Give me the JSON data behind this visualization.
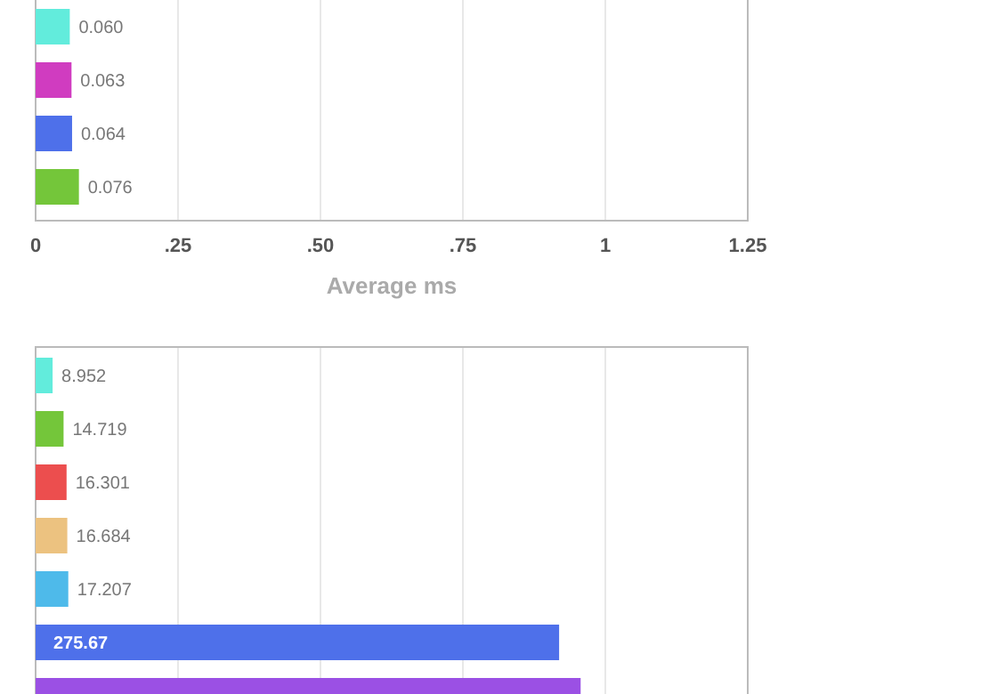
{
  "chart_data": [
    {
      "type": "bar",
      "orientation": "horizontal",
      "categories": [
        null,
        null,
        null,
        null
      ],
      "xlabel": "Average ms",
      "values": [
        0.06,
        0.063,
        0.064,
        0.076
      ],
      "colors": [
        "#62ecdc",
        "#d03cc0",
        "#4e70ea",
        "#74c63a"
      ],
      "value_labels": [
        "0.060",
        "0.063",
        "0.064",
        "0.076"
      ],
      "xlim": [
        0,
        1.25
      ],
      "xticks": [
        0,
        {
          "value": 0.25,
          "label": ".25"
        },
        {
          "value": 0.5,
          "label": ".50"
        },
        {
          "value": 0.75,
          "label": ".75"
        },
        1,
        1.25
      ],
      "grid": "x",
      "tick_labels": "x"
    },
    {
      "type": "bar",
      "orientation": "horizontal",
      "categories": [
        null,
        null,
        null,
        null,
        null,
        null,
        null
      ],
      "values": [
        8.952,
        14.719,
        16.301,
        16.684,
        17.207,
        275.67,
        287
      ],
      "colors": [
        "#62ecdc",
        "#74c63a",
        "#ec4e4e",
        "#ecc280",
        "#4ebaea",
        "#4e70ea",
        "#9b50e4"
      ],
      "value_labels": [
        "8.952",
        "14.719",
        "16.301",
        "16.684",
        "17.207",
        "275.67",
        null
      ],
      "xlim": [
        0,
        375
      ],
      "xticks": [
        {
          "value": 0,
          "label": null
        },
        {
          "value": 75,
          "label": null
        },
        {
          "value": 150,
          "label": null
        },
        {
          "value": 225,
          "label": null
        },
        {
          "value": 300,
          "label": null
        },
        {
          "value": 375,
          "label": null
        }
      ],
      "grid": "x",
      "tick_labels": false
    }
  ]
}
